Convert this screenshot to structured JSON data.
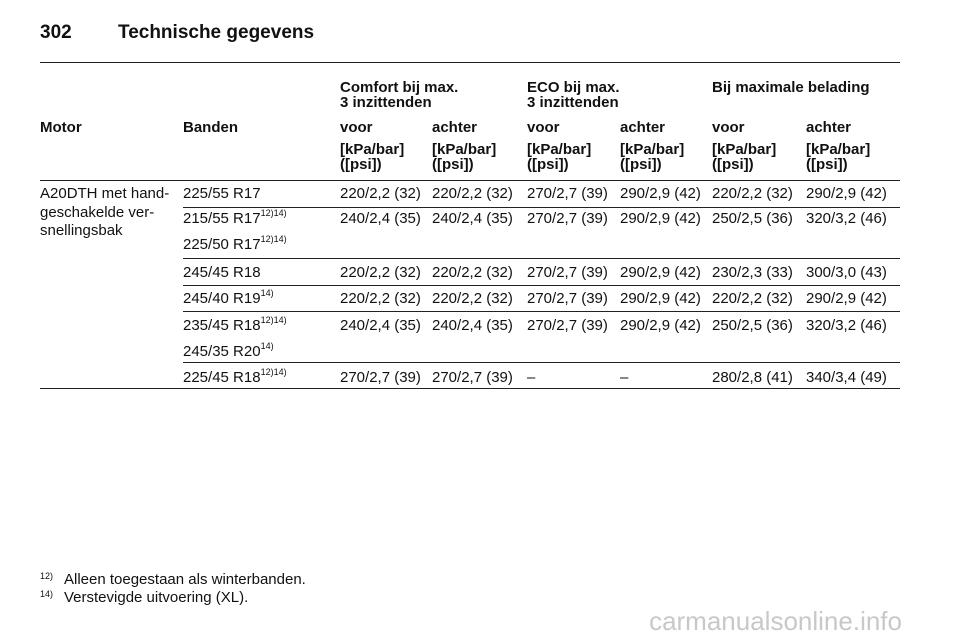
{
  "header": {
    "page_number": "302",
    "title": "Technische gegevens"
  },
  "table": {
    "group_headers": [
      {
        "line1": "Comfort bij max.",
        "line2": "3 inzittenden"
      },
      {
        "line1": "ECO bij max.",
        "line2": "3 inzittenden"
      },
      {
        "line1": "Bij maximale belading"
      }
    ],
    "columns": [
      "Motor",
      "Banden",
      "voor",
      "achter",
      "voor",
      "achter",
      "voor",
      "achter"
    ],
    "units": [
      {
        "line1": "[kPa/bar]",
        "line2": "([psi])"
      },
      {
        "line1": "[kPa/bar]",
        "line2": "([psi])"
      },
      {
        "line1": "[kPa/bar]",
        "line2": "([psi])"
      },
      {
        "line1": "[kPa/bar]",
        "line2": "([psi])"
      },
      {
        "line1": "[kPa/bar]",
        "line2": "([psi])"
      },
      {
        "line1": "[kPa/bar]",
        "line2": "([psi])"
      }
    ],
    "motor": [
      "A20DTH met hand-",
      "geschakelde ver-",
      "snellingsbak"
    ],
    "rows": [
      {
        "tyres": [
          {
            "size": "225/55 R17"
          }
        ],
        "values": [
          "220/2,2 (32)",
          "220/2,2 (32)",
          "270/2,7 (39)",
          "290/2,9 (42)",
          "220/2,2 (32)",
          "290/2,9 (42)"
        ]
      },
      {
        "tyres": [
          {
            "size": "215/55 R17",
            "notes": "12)14)"
          },
          {
            "size": "225/50 R17",
            "notes": "12)14)"
          }
        ],
        "values": [
          "240/2,4 (35)",
          "240/2,4 (35)",
          "270/2,7 (39)",
          "290/2,9 (42)",
          "250/2,5 (36)",
          "320/3,2 (46)"
        ]
      },
      {
        "tyres": [
          {
            "size": "245/45 R18"
          }
        ],
        "values": [
          "220/2,2 (32)",
          "220/2,2 (32)",
          "270/2,7 (39)",
          "290/2,9 (42)",
          "230/2,3 (33)",
          "300/3,0 (43)"
        ]
      },
      {
        "tyres": [
          {
            "size": "245/40 R19",
            "notes": "14)"
          }
        ],
        "values": [
          "220/2,2 (32)",
          "220/2,2 (32)",
          "270/2,7 (39)",
          "290/2,9 (42)",
          "220/2,2 (32)",
          "290/2,9 (42)"
        ]
      },
      {
        "tyres": [
          {
            "size": "235/45 R18",
            "notes": "12)14)"
          },
          {
            "size": "245/35 R20",
            "notes": "14)"
          }
        ],
        "values": [
          "240/2,4 (35)",
          "240/2,4 (35)",
          "270/2,7 (39)",
          "290/2,9 (42)",
          "250/2,5 (36)",
          "320/3,2 (46)"
        ]
      },
      {
        "tyres": [
          {
            "size": "225/45 R18",
            "notes": "12)14)"
          }
        ],
        "values": [
          "270/2,7 (39)",
          "270/2,7 (39)",
          "–",
          "–",
          "280/2,8 (41)",
          "340/3,4 (49)"
        ]
      }
    ]
  },
  "footnotes": [
    {
      "mark": "12)",
      "text": "Alleen toegestaan als winterbanden."
    },
    {
      "mark": "14)",
      "text": "Verstevigde uitvoering (XL)."
    }
  ],
  "watermark": "carmanualsonline.info"
}
